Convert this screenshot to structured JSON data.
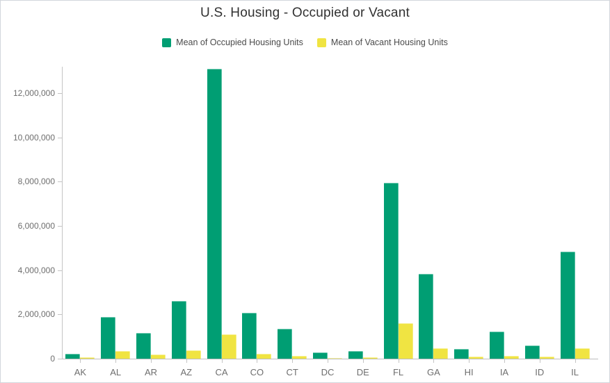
{
  "page": {
    "title": "U.S. Housing - Occupied or Vacant"
  },
  "legend": {
    "items": [
      {
        "label": "Mean of Occupied Housing Units",
        "color": "#009E73"
      },
      {
        "label": "Mean of Vacant Housing Units",
        "color": "#F0E442"
      }
    ]
  },
  "chart_data": {
    "type": "bar",
    "grouped": true,
    "title": "U.S. Housing - Occupied or Vacant",
    "categories": [
      "AK",
      "AL",
      "AR",
      "AZ",
      "CA",
      "CO",
      "CT",
      "DC",
      "DE",
      "FL",
      "GA",
      "HI",
      "IA",
      "ID",
      "IL"
    ],
    "series": [
      {
        "name": "Mean of Occupied Housing Units",
        "color": "#009E73",
        "values": [
          230000,
          1870000,
          1150000,
          2600000,
          13100000,
          2080000,
          1360000,
          270000,
          360000,
          7940000,
          3840000,
          440000,
          1230000,
          600000,
          4850000
        ]
      },
      {
        "name": "Mean of Vacant Housing Units",
        "color": "#F0E442",
        "values": [
          60000,
          360000,
          180000,
          370000,
          1100000,
          210000,
          120000,
          40000,
          70000,
          1590000,
          470000,
          80000,
          130000,
          90000,
          470000
        ]
      }
    ],
    "xlabel": "",
    "ylabel": "",
    "ylim": [
      0,
      13200000
    ],
    "yticks": {
      "values": [
        0,
        2000000,
        4000000,
        6000000,
        8000000,
        10000000,
        12000000
      ],
      "labels": [
        "0",
        "2,000,000",
        "4,000,000",
        "6,000,000",
        "8,000,000",
        "10,000,000",
        "12,000,000"
      ]
    },
    "grid": false,
    "legend_position": "top"
  },
  "colors": {
    "axis": "#c4c4c4",
    "tick_label": "#6e6e6e",
    "title": "#313131",
    "legend_text": "#4a4a4a",
    "frame_border": "#d2d6dc",
    "plot_background": "#ffffff"
  }
}
